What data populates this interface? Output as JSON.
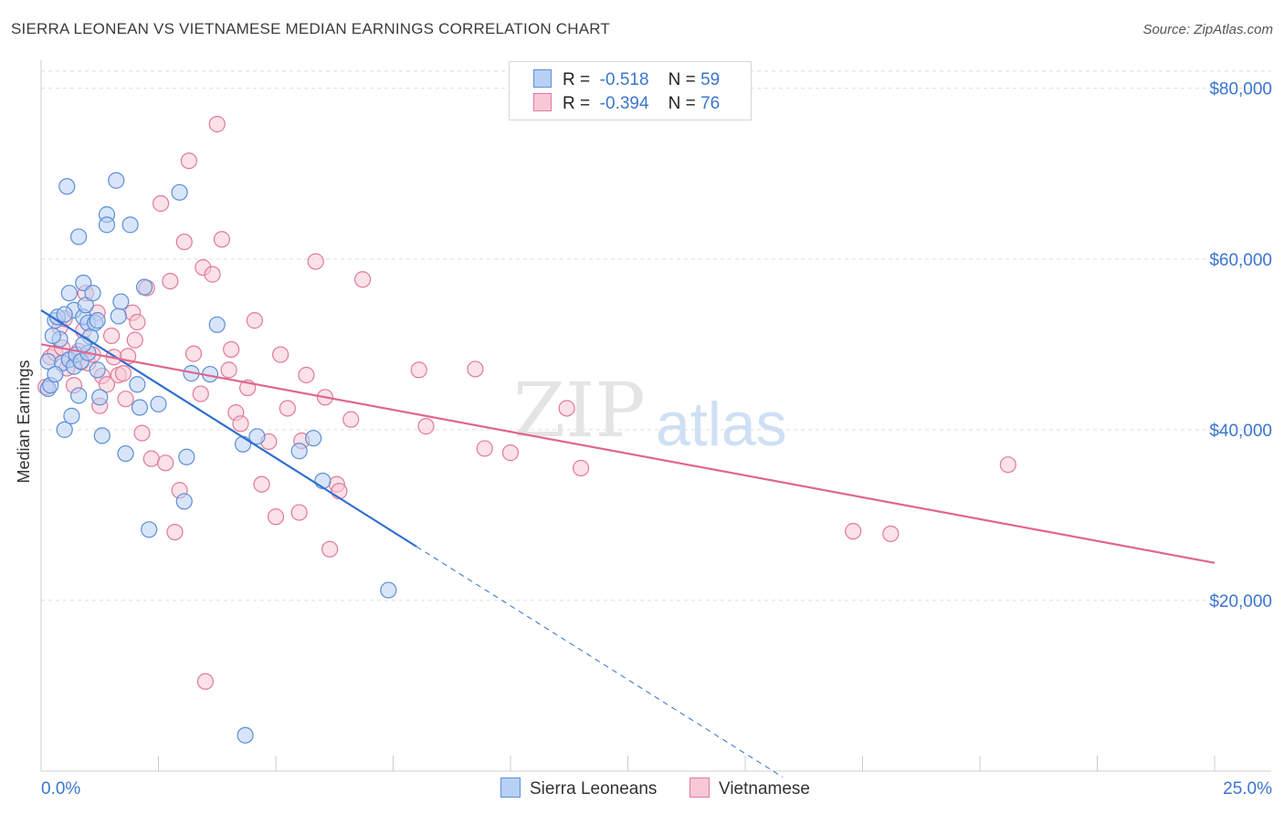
{
  "header": {
    "title": "SIERRA LEONEAN VS VIETNAMESE MEDIAN EARNINGS CORRELATION CHART",
    "source": "Source: ZipAtlas.com"
  },
  "legend": {
    "rows": [
      {
        "r_label": "R =",
        "r_value": "-0.518",
        "n_label": "N =",
        "n_value": "59"
      },
      {
        "r_label": "R =",
        "r_value": "-0.394",
        "n_label": "N =",
        "n_value": "76"
      }
    ],
    "bottom": [
      "Sierra Leoneans",
      "Vietnamese"
    ]
  },
  "watermark": {
    "zip": "ZIP",
    "atlas": "atlas"
  },
  "colors": {
    "blue_fill": "#b8d0f4",
    "blue_stroke": "#5b8fd6",
    "blue_line": "#2f6fd0",
    "pink_fill": "#f8c8d6",
    "pink_stroke": "#e07a9a",
    "pink_line": "#e0668f",
    "tick_label": "#3b75d0",
    "grid": "#dedede"
  },
  "chart_data": {
    "type": "scatter",
    "title": "SIERRA LEONEAN VS VIETNAMESE MEDIAN EARNINGS CORRELATION CHART",
    "xlabel": "",
    "ylabel": "Median Earnings",
    "xlim": [
      0,
      25
    ],
    "ylim": [
      0,
      82000
    ],
    "x_tick_labels": [
      "0.0%",
      "25.0%"
    ],
    "y_ticks": [
      20000,
      40000,
      60000,
      80000
    ],
    "y_tick_labels": [
      "$20,000",
      "$40,000",
      "$60,000",
      "$80,000"
    ],
    "grid": true,
    "legend_position": "top-center",
    "series": [
      {
        "name": "Sierra Leoneans",
        "r": -0.518,
        "n": 59,
        "trend": {
          "x0": 0.0,
          "y0": 54000,
          "x1": 8.0,
          "y1": 26300,
          "dash_to_x": 15.8
        },
        "points": [
          [
            0.15,
            48000
          ],
          [
            0.15,
            44800
          ],
          [
            0.2,
            45200
          ],
          [
            0.3,
            52800
          ],
          [
            0.35,
            53200
          ],
          [
            0.4,
            50600
          ],
          [
            0.45,
            47800
          ],
          [
            0.5,
            40000
          ],
          [
            0.55,
            68500
          ],
          [
            0.6,
            48200
          ],
          [
            0.6,
            56000
          ],
          [
            0.65,
            41600
          ],
          [
            0.7,
            54000
          ],
          [
            0.7,
            47400
          ],
          [
            0.75,
            48800
          ],
          [
            0.8,
            44000
          ],
          [
            0.8,
            62600
          ],
          [
            0.85,
            48000
          ],
          [
            0.9,
            53200
          ],
          [
            0.9,
            57200
          ],
          [
            0.95,
            54600
          ],
          [
            1.0,
            52500
          ],
          [
            1.05,
            50900
          ],
          [
            1.1,
            56000
          ],
          [
            1.15,
            52500
          ],
          [
            1.2,
            52800
          ],
          [
            1.25,
            43800
          ],
          [
            1.3,
            39300
          ],
          [
            1.4,
            65200
          ],
          [
            1.4,
            64000
          ],
          [
            1.6,
            69200
          ],
          [
            1.65,
            53300
          ],
          [
            1.7,
            55000
          ],
          [
            1.8,
            37200
          ],
          [
            1.9,
            64000
          ],
          [
            2.05,
            45300
          ],
          [
            2.1,
            42600
          ],
          [
            2.2,
            56700
          ],
          [
            2.3,
            28300
          ],
          [
            2.5,
            43000
          ],
          [
            2.95,
            67800
          ],
          [
            3.05,
            31600
          ],
          [
            3.1,
            36800
          ],
          [
            3.2,
            46600
          ],
          [
            3.6,
            46500
          ],
          [
            3.75,
            52300
          ],
          [
            4.3,
            38300
          ],
          [
            4.35,
            4200
          ],
          [
            4.6,
            39200
          ],
          [
            5.5,
            37500
          ],
          [
            5.8,
            39000
          ],
          [
            6.0,
            34000
          ],
          [
            7.4,
            21200
          ],
          [
            0.25,
            51000
          ],
          [
            1.0,
            49000
          ],
          [
            0.5,
            53500
          ],
          [
            0.9,
            50000
          ],
          [
            1.2,
            47000
          ],
          [
            0.3,
            46500
          ]
        ]
      },
      {
        "name": "Vietnamese",
        "r": -0.394,
        "n": 76,
        "trend": {
          "x0": 0.0,
          "y0": 50000,
          "x1": 25.0,
          "y1": 24400
        },
        "points": [
          [
            0.1,
            45000
          ],
          [
            0.2,
            48500
          ],
          [
            0.3,
            49000
          ],
          [
            0.4,
            52000
          ],
          [
            0.45,
            49600
          ],
          [
            0.5,
            53000
          ],
          [
            0.55,
            47200
          ],
          [
            0.6,
            48200
          ],
          [
            0.7,
            45200
          ],
          [
            0.8,
            49200
          ],
          [
            0.85,
            47900
          ],
          [
            0.9,
            51600
          ],
          [
            0.95,
            56000
          ],
          [
            1.0,
            47800
          ],
          [
            1.1,
            48800
          ],
          [
            1.2,
            53700
          ],
          [
            1.25,
            42800
          ],
          [
            1.3,
            46300
          ],
          [
            1.4,
            45300
          ],
          [
            1.5,
            51000
          ],
          [
            1.55,
            48500
          ],
          [
            1.65,
            46400
          ],
          [
            1.75,
            46600
          ],
          [
            1.8,
            43600
          ],
          [
            1.85,
            48600
          ],
          [
            1.95,
            53700
          ],
          [
            2.05,
            52600
          ],
          [
            2.15,
            39600
          ],
          [
            2.25,
            56600
          ],
          [
            2.35,
            36600
          ],
          [
            2.55,
            66500
          ],
          [
            2.65,
            36100
          ],
          [
            2.75,
            57400
          ],
          [
            2.85,
            28000
          ],
          [
            2.95,
            32900
          ],
          [
            3.05,
            62000
          ],
          [
            3.15,
            71500
          ],
          [
            3.25,
            48900
          ],
          [
            3.4,
            44200
          ],
          [
            3.45,
            59000
          ],
          [
            3.5,
            10500
          ],
          [
            3.65,
            58200
          ],
          [
            3.75,
            75800
          ],
          [
            3.85,
            62300
          ],
          [
            4.05,
            49400
          ],
          [
            4.15,
            42000
          ],
          [
            4.25,
            40700
          ],
          [
            4.4,
            44900
          ],
          [
            4.55,
            52800
          ],
          [
            4.7,
            33600
          ],
          [
            4.85,
            38600
          ],
          [
            5.0,
            29800
          ],
          [
            5.1,
            48800
          ],
          [
            5.25,
            42500
          ],
          [
            5.5,
            30300
          ],
          [
            5.55,
            38700
          ],
          [
            5.65,
            46400
          ],
          [
            5.85,
            59700
          ],
          [
            6.05,
            43800
          ],
          [
            6.15,
            26000
          ],
          [
            6.3,
            33600
          ],
          [
            6.35,
            32800
          ],
          [
            6.6,
            41200
          ],
          [
            6.85,
            57600
          ],
          [
            8.05,
            47000
          ],
          [
            8.2,
            40400
          ],
          [
            9.25,
            47100
          ],
          [
            9.45,
            37800
          ],
          [
            10.0,
            37300
          ],
          [
            11.2,
            42500
          ],
          [
            11.5,
            35500
          ],
          [
            17.3,
            28100
          ],
          [
            18.1,
            27800
          ],
          [
            20.6,
            35900
          ],
          [
            4.0,
            47000
          ],
          [
            2.0,
            50500
          ]
        ]
      }
    ]
  }
}
